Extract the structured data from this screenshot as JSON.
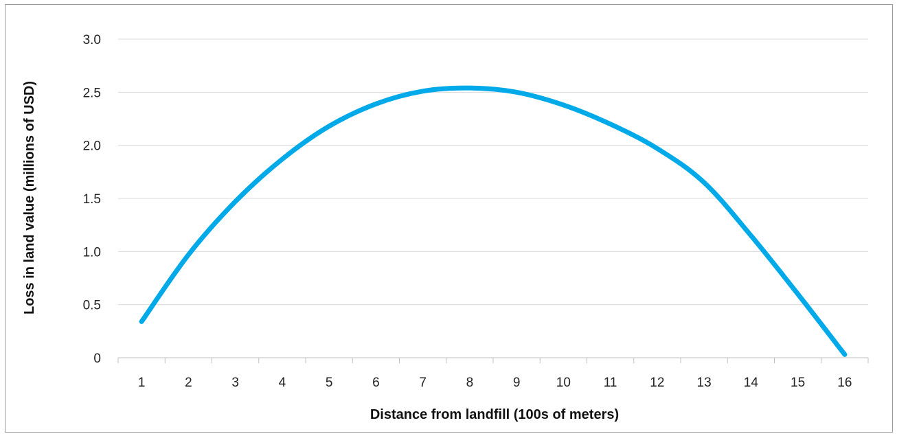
{
  "chart_data": {
    "type": "line",
    "title": "",
    "xlabel": "Distance from landfill (100s of meters)",
    "ylabel": "Loss in land value (millions of USD)",
    "x_categories": [
      "1",
      "2",
      "3",
      "4",
      "5",
      "6",
      "7",
      "8",
      "9",
      "10",
      "11",
      "12",
      "13",
      "14",
      "15",
      "16"
    ],
    "y_ticks": [
      "0",
      "0.5",
      "1.0",
      "1.5",
      "2.0",
      "2.5",
      "3.0"
    ],
    "ylim": [
      0,
      3.0
    ],
    "grid": true,
    "legend": "none",
    "series": [
      {
        "color": "#00a9e8",
        "x": [
          1,
          2,
          3,
          4,
          5,
          6,
          7,
          8,
          9,
          10,
          11,
          12,
          13,
          14,
          15,
          16
        ],
        "y": [
          0.34,
          0.97,
          1.47,
          1.87,
          2.18,
          2.39,
          2.51,
          2.54,
          2.5,
          2.38,
          2.2,
          1.97,
          1.65,
          1.15,
          0.6,
          0.03
        ]
      }
    ]
  }
}
